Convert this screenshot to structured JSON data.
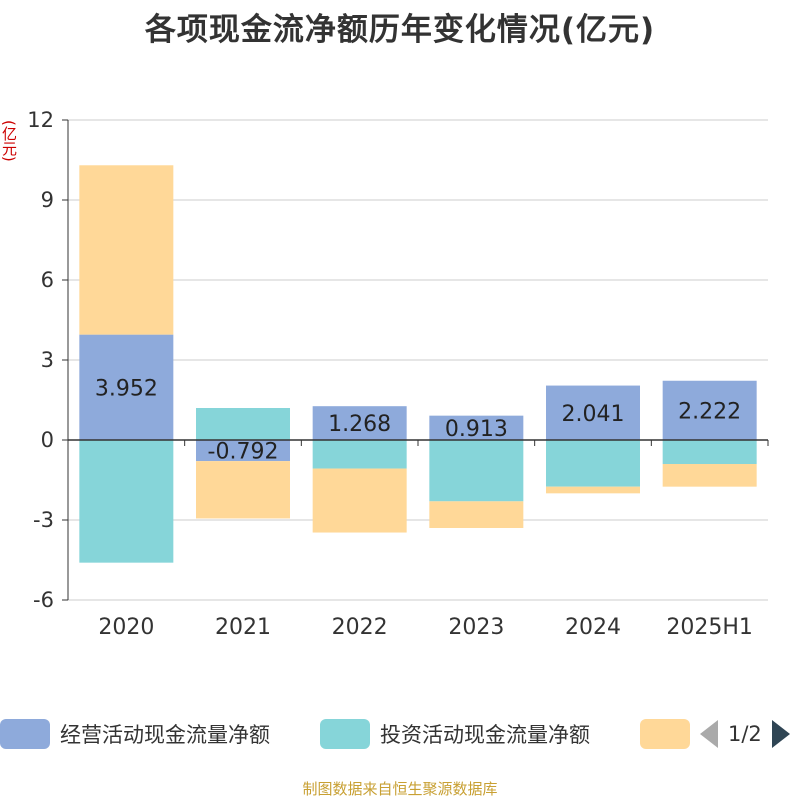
{
  "title": "各项现金流净额历年变化情况(亿元)",
  "unit": "(亿元)",
  "chart_data": {
    "type": "bar",
    "stacked": true,
    "title": "各项现金流净额历年变化情况(亿元)",
    "ylabel": "(亿元)",
    "ylim": [
      -6,
      12
    ],
    "yticks": [
      12,
      9,
      6,
      3,
      0,
      -3,
      -6
    ],
    "ytick_labels": [
      "12",
      "9",
      "6",
      "3",
      "0",
      "-3",
      "-6"
    ],
    "grid": true,
    "categories": [
      "2020",
      "2021",
      "2022",
      "2023",
      "2024",
      "2025H1"
    ],
    "series": [
      {
        "name": "经营活动现金流量净额",
        "color": "#8eaadb",
        "values": [
          3.952,
          -0.792,
          1.268,
          0.913,
          2.041,
          2.222
        ],
        "labels": [
          "3.952",
          "-0.792",
          "1.268",
          "0.913",
          "2.041",
          "2.222"
        ]
      },
      {
        "name": "投资活动现金流量净额",
        "color": "#86d5d9",
        "values": [
          -4.6,
          1.2,
          -1.07,
          -2.3,
          -1.75,
          -0.9
        ]
      },
      {
        "name": "",
        "color": "#ffd898",
        "values": [
          6.35,
          -2.15,
          -2.4,
          -1.0,
          -0.25,
          -0.85
        ]
      }
    ]
  },
  "legend": {
    "items": [
      {
        "label": "经营活动现金流量净额",
        "color": "#8eaadb"
      },
      {
        "label": "投资活动现金流量净额",
        "color": "#86d5d9"
      },
      {
        "label": "",
        "color": "#ffd898"
      }
    ],
    "page": "1/2"
  },
  "source": "制图数据来自恒生聚源数据库"
}
